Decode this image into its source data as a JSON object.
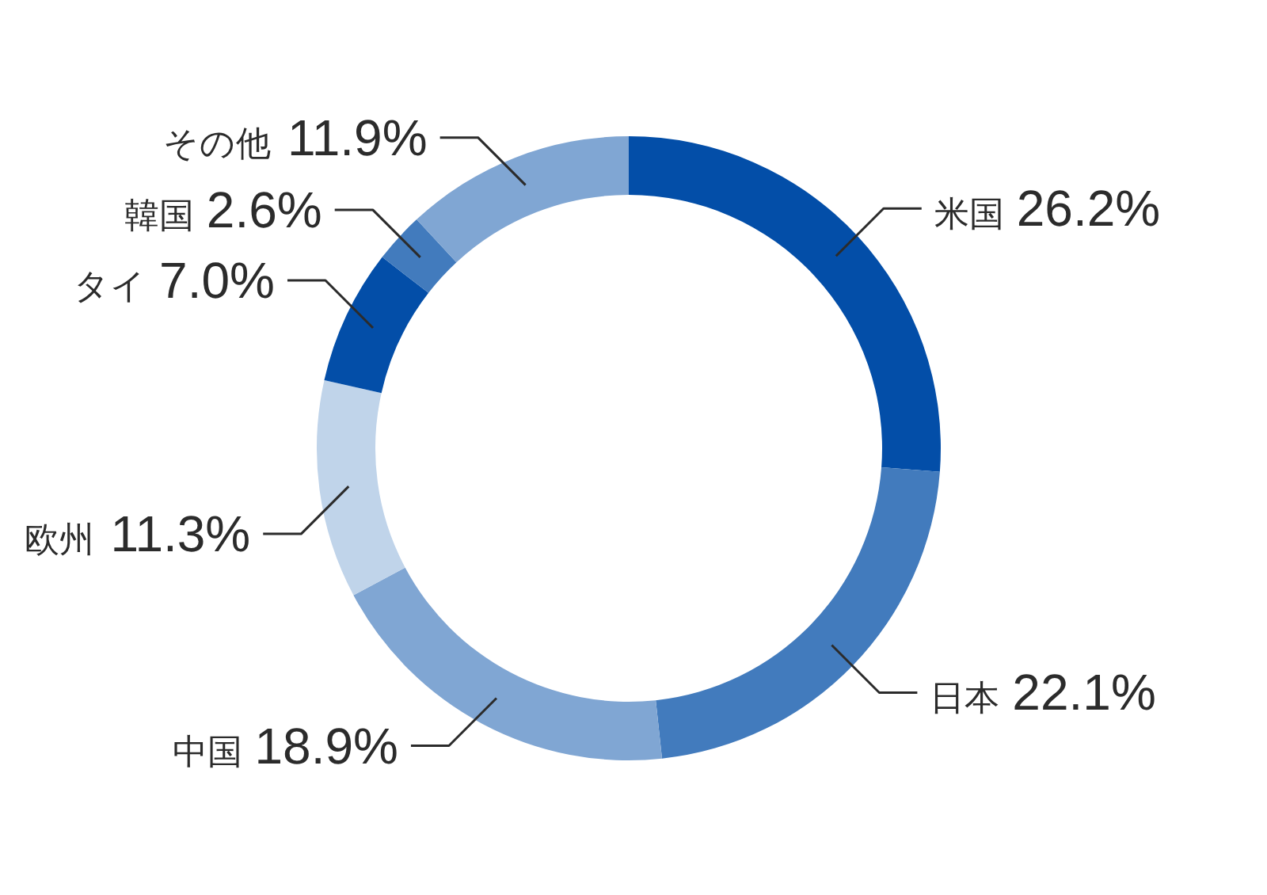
{
  "chart_data": {
    "type": "donut",
    "categories": [
      "米国",
      "日本",
      "中国",
      "欧州",
      "タイ",
      "韓国",
      "その他"
    ],
    "values": [
      26.2,
      22.1,
      18.9,
      11.3,
      7.0,
      2.6,
      11.9
    ],
    "colors": [
      "#034ea8",
      "#427bbd",
      "#80a6d3",
      "#c0d4ea",
      "#034ea8",
      "#427bbd",
      "#80a6d3"
    ],
    "value_labels": [
      "26.2%",
      "22.1%",
      "18.9%",
      "11.3%",
      "7.0%",
      "2.6%",
      "11.9%"
    ]
  }
}
